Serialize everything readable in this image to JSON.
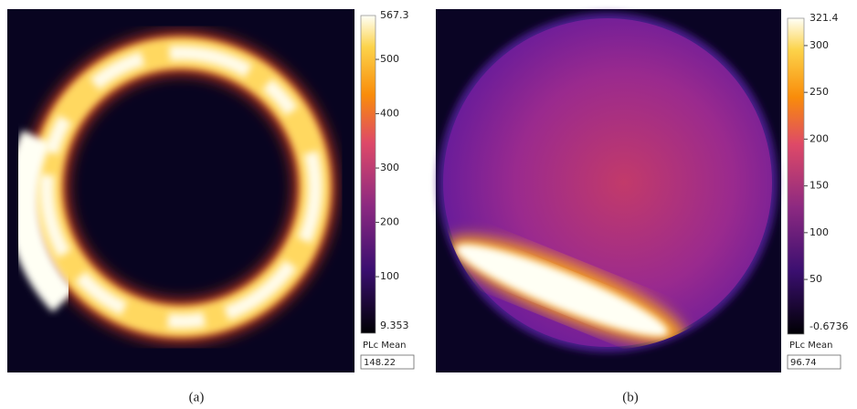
{
  "panels": [
    {
      "caption": "(a)",
      "colorbar": {
        "max": 567.3,
        "min": 9.353,
        "ticks": [
          500,
          400,
          300,
          200,
          100
        ]
      },
      "mean_label": "PLc Mean",
      "mean_value": 148.22
    },
    {
      "caption": "(b)",
      "colorbar": {
        "max": 321.4,
        "min": -0.6736,
        "ticks": [
          300,
          250,
          200,
          150,
          100,
          50
        ]
      },
      "mean_label": "PLc Mean",
      "mean_value": 96.74
    }
  ]
}
